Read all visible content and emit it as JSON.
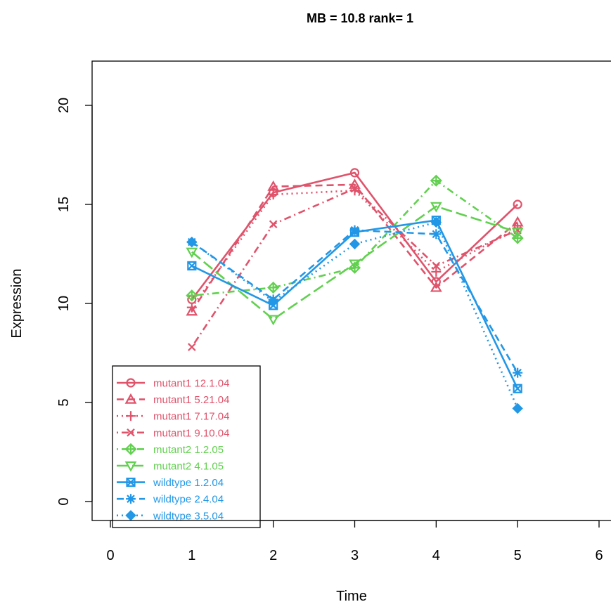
{
  "chart_data": {
    "type": "line",
    "title": "MB = 10.8  rank= 1",
    "xlabel": "Time",
    "ylabel": "Expression",
    "xlim": [
      0,
      6
    ],
    "ylim": [
      0,
      22
    ],
    "x_ticks": [
      "0",
      "1",
      "2",
      "3",
      "4",
      "5",
      "6"
    ],
    "y_ticks": [
      "0",
      "5",
      "10",
      "15",
      "20"
    ],
    "legend_position": "bottom-left",
    "colors": {
      "mutant1": "#DF536B",
      "mutant2": "#61D04F",
      "wildtype": "#2297E6"
    },
    "x": [
      1,
      2,
      3,
      4,
      5
    ],
    "series": [
      {
        "name": "mutant1 12.1.04",
        "color": "#DF536B",
        "marker": "circle",
        "dash": "solid",
        "values": [
          10.2,
          15.6,
          16.6,
          11.1,
          15.0
        ]
      },
      {
        "name": "mutant1 5.21.04",
        "color": "#DF536B",
        "marker": "triangle",
        "dash": "dashed",
        "values": [
          9.6,
          15.9,
          16.0,
          10.8,
          14.1
        ]
      },
      {
        "name": "mutant1 7.17.04",
        "color": "#DF536B",
        "marker": "plus",
        "dash": "dotted",
        "values": [
          9.8,
          15.5,
          15.7,
          11.6,
          13.8
        ]
      },
      {
        "name": "mutant1 9.10.04",
        "color": "#DF536B",
        "marker": "x",
        "dash": "dotdash",
        "values": [
          7.8,
          14.0,
          15.8,
          11.9,
          13.7
        ]
      },
      {
        "name": "mutant2 1.2.05",
        "color": "#61D04F",
        "marker": "diamond",
        "dash": "dotdash",
        "values": [
          10.4,
          10.8,
          11.8,
          16.2,
          13.3
        ]
      },
      {
        "name": "mutant2 4.1.05",
        "color": "#61D04F",
        "marker": "down-triangle",
        "dash": "longdash",
        "values": [
          12.6,
          9.2,
          12.0,
          14.9,
          13.6
        ]
      },
      {
        "name": "wildtype 1.2.04",
        "color": "#2297E6",
        "marker": "square",
        "dash": "solid",
        "values": [
          11.9,
          9.9,
          13.6,
          14.2,
          5.7
        ]
      },
      {
        "name": "wildtype 2.4.04",
        "color": "#2297E6",
        "marker": "asterisk",
        "dash": "dashed",
        "values": [
          13.1,
          10.2,
          13.7,
          13.5,
          6.5
        ]
      },
      {
        "name": "wildtype 3.5.04",
        "color": "#2297E6",
        "marker": "filled-diamond",
        "dash": "dotted",
        "values": [
          13.1,
          10.1,
          13.0,
          14.1,
          4.7
        ]
      }
    ]
  }
}
